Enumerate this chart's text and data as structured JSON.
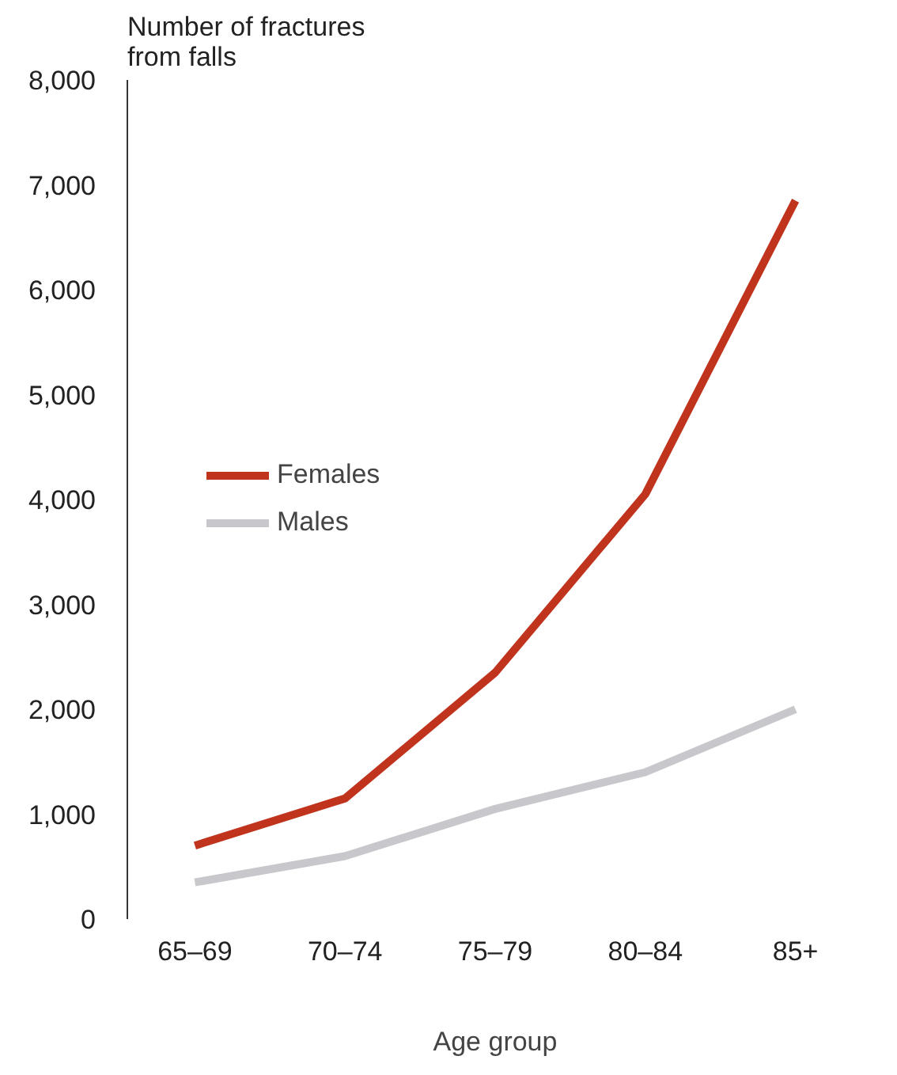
{
  "chart_data": {
    "type": "line",
    "ylabel": "Number of fractures\nfrom falls",
    "xlabel": "Age group",
    "categories": [
      "65–69",
      "70–74",
      "75–79",
      "80–84",
      "85+"
    ],
    "series": [
      {
        "name": "Females",
        "color": "#c0341d",
        "values": [
          700,
          1150,
          2350,
          4050,
          6850
        ]
      },
      {
        "name": "Males",
        "color": "#c8c8cc",
        "values": [
          350,
          600,
          1050,
          1400,
          2000
        ]
      }
    ],
    "ylim": [
      0,
      8000
    ],
    "yticks": [
      0,
      {
        "value": 1000,
        "label": "1,000"
      },
      {
        "value": 2000,
        "label": "2,000"
      },
      {
        "value": 3000,
        "label": "3,000"
      },
      {
        "value": 4000,
        "label": "4,000"
      },
      {
        "value": 5000,
        "label": "5,000"
      },
      {
        "value": 6000,
        "label": "6,000"
      },
      {
        "value": 7000,
        "label": "7,000"
      },
      {
        "value": 8000,
        "label": "8,000"
      }
    ],
    "grid": false,
    "legend": "left",
    "marker": "none",
    "line_style": "solid"
  }
}
